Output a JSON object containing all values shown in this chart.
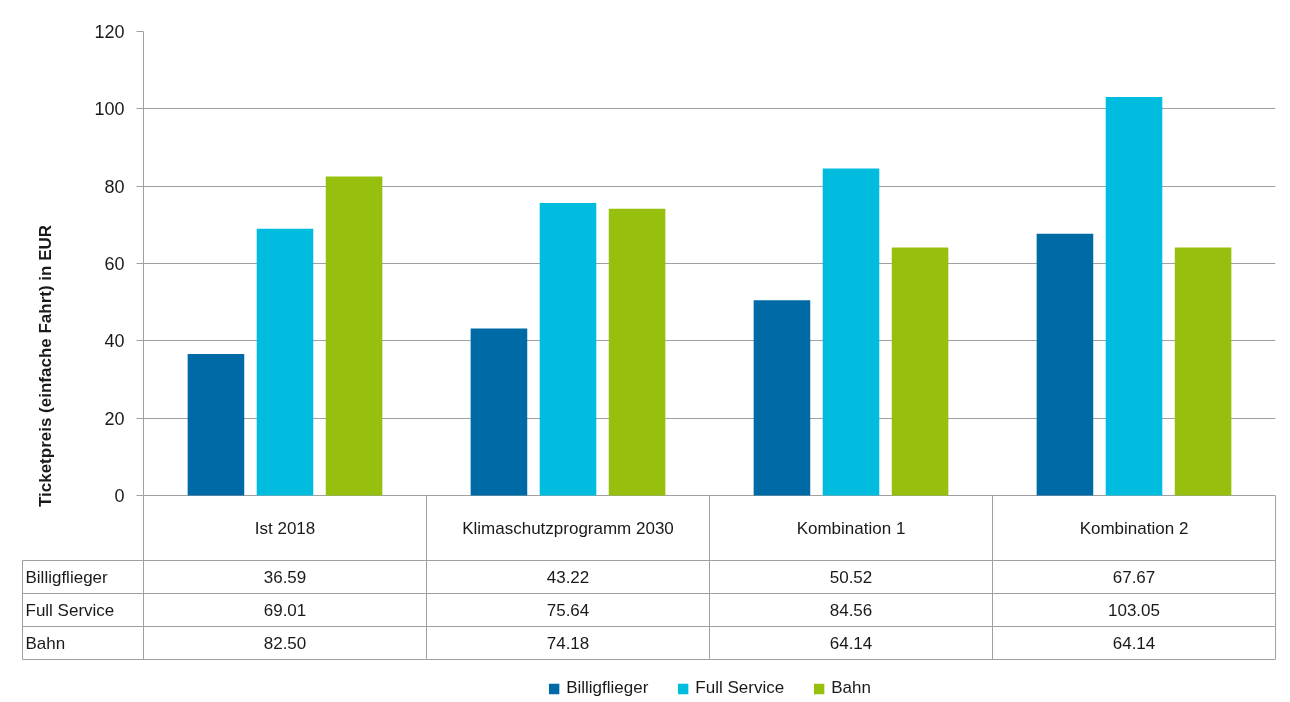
{
  "chart_data": {
    "type": "bar",
    "ylabel": "Ticketpreis (einfache Fahrt) in EUR",
    "categories": [
      "Ist 2018",
      "Klimaschutzprogramm 2030",
      "Kombination 1",
      "Kombination 2"
    ],
    "series": [
      {
        "name": "Billigflieger",
        "color": "#006aa6",
        "values": [
          36.59,
          43.22,
          50.52,
          67.67
        ],
        "value_labels": [
          "36.59",
          "43.22",
          "50.52",
          "67.67"
        ]
      },
      {
        "name": "Full Service",
        "color": "#00bde0",
        "values": [
          69.01,
          75.64,
          84.56,
          103.05
        ],
        "value_labels": [
          "69.01",
          "75.64",
          "84.56",
          "103.05"
        ]
      },
      {
        "name": "Bahn",
        "color": "#97bf0d",
        "values": [
          82.5,
          74.18,
          64.14,
          64.14
        ],
        "value_labels": [
          "82.50",
          "74.18",
          "64.14",
          "64.14"
        ]
      }
    ],
    "ylim": [
      0,
      120
    ],
    "yticks": [
      0,
      20,
      40,
      60,
      80,
      100,
      120
    ],
    "grid": "y",
    "legend": "bottom"
  }
}
